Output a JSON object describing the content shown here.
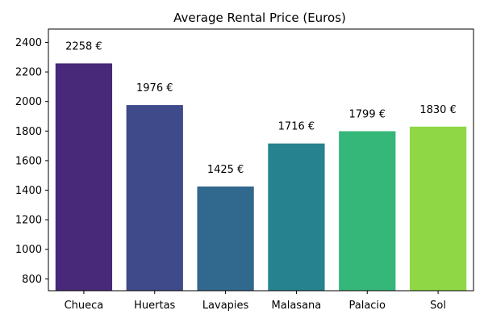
{
  "chart_data": {
    "type": "bar",
    "title": "Average Rental Price (Euros)",
    "xlabel": "",
    "ylabel": "",
    "categories": [
      "Chueca",
      "Huertas",
      "Lavapies",
      "Malasana",
      "Palacio",
      "Sol"
    ],
    "values": [
      2258,
      1976,
      1425,
      1716,
      1799,
      1830
    ],
    "data_labels": [
      "2258 €",
      "1976 €",
      "1425 €",
      "1716 €",
      "1799 €",
      "1830 €"
    ],
    "colors": [
      "#482878",
      "#3e4a89",
      "#31688e",
      "#26828e",
      "#35b779",
      "#8fd744"
    ],
    "ylim": [
      720,
      2490
    ],
    "yticks": [
      800,
      1000,
      1200,
      1400,
      1600,
      1800,
      2000,
      2200,
      2400
    ],
    "grid": false,
    "legend": "none"
  }
}
